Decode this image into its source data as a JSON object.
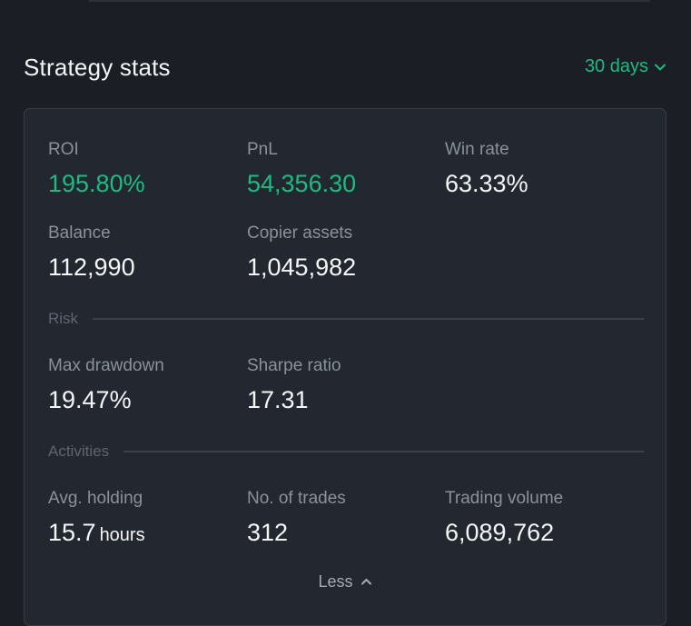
{
  "header": {
    "title": "Strategy stats",
    "range_label": "30 days"
  },
  "stats": {
    "roi": {
      "label": "ROI",
      "value": "195.80%"
    },
    "pnl": {
      "label": "PnL",
      "value": "54,356.30"
    },
    "win_rate": {
      "label": "Win rate",
      "value": "63.33%"
    },
    "balance": {
      "label": "Balance",
      "value": "112,990"
    },
    "copier_assets": {
      "label": "Copier assets",
      "value": "1,045,982"
    }
  },
  "risk": {
    "section_label": "Risk",
    "max_drawdown": {
      "label": "Max drawdown",
      "value": "19.47%"
    },
    "sharpe_ratio": {
      "label": "Sharpe ratio",
      "value": "17.31"
    }
  },
  "activities": {
    "section_label": "Activities",
    "avg_holding": {
      "label": "Avg. holding",
      "value": "15.7",
      "unit": "hours"
    },
    "num_trades": {
      "label": "No. of trades",
      "value": "312"
    },
    "trading_volume": {
      "label": "Trading volume",
      "value": "6,089,762"
    }
  },
  "toggle": {
    "label": "Less"
  },
  "colors": {
    "accent_green": "#1dbb82",
    "background": "#1b1e24",
    "card": "#232830"
  },
  "icons": {
    "range": "chevron-down-icon",
    "toggle": "chevron-up-icon"
  }
}
